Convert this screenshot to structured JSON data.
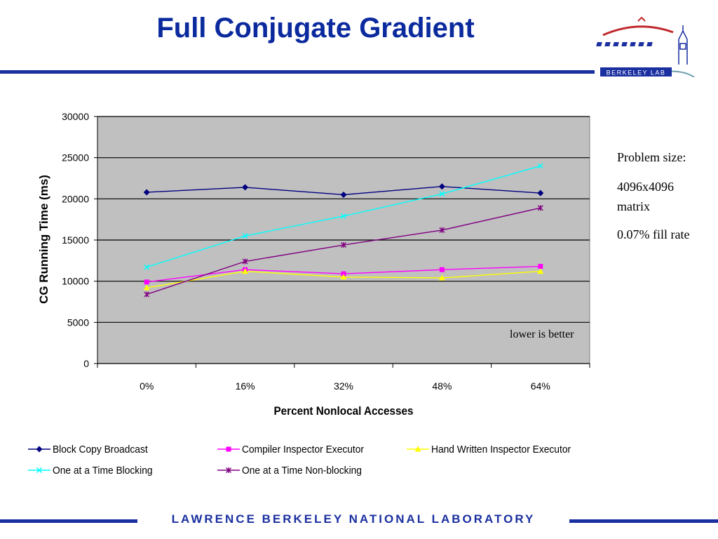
{
  "header": {
    "title": "Full Conjugate Gradient"
  },
  "logo": {
    "text": "Berkeley Lab",
    "icon": "berkeley-lab-logo"
  },
  "notes": {
    "problem_size_label": "Problem size:",
    "matrix_size": "4096x4096",
    "matrix_word": "matrix",
    "fill_rate": "0.07% fill rate"
  },
  "annotation": "lower is better",
  "footer": {
    "text": "Lawrence Berkeley National Laboratory"
  },
  "colors": {
    "title": "#0b2a9e",
    "rule": "#1a2fa0",
    "plot_bg": "#c0c0c0"
  },
  "chart_data": {
    "type": "line",
    "title": "",
    "xlabel": "Percent Nonlocal Accesses",
    "ylabel": "CG Running Time (ms)",
    "categories": [
      "0%",
      "16%",
      "32%",
      "48%",
      "64%"
    ],
    "ylim": [
      0,
      30000
    ],
    "yticks": [
      0,
      5000,
      10000,
      15000,
      20000,
      25000,
      30000
    ],
    "grid": true,
    "legend_position": "bottom",
    "series": [
      {
        "name": "Block Copy Broadcast",
        "values": [
          20800,
          21400,
          20500,
          21500,
          20700
        ],
        "color": "#000080",
        "marker": "diamond"
      },
      {
        "name": "Compiler Inspector Executor",
        "values": [
          9900,
          11400,
          10900,
          11400,
          11800
        ],
        "color": "#ff00ff",
        "marker": "square"
      },
      {
        "name": "Hand Written Inspector Executor",
        "values": [
          9200,
          11200,
          10500,
          10400,
          11200
        ],
        "color": "#ffff00",
        "marker": "triangle"
      },
      {
        "name": "One at a Time Blocking",
        "values": [
          11700,
          15500,
          17900,
          20600,
          24000
        ],
        "color": "#00ffff",
        "marker": "x"
      },
      {
        "name": "One at a Time Non-blocking",
        "values": [
          8400,
          12400,
          14400,
          16200,
          18900
        ],
        "color": "#800080",
        "marker": "star"
      }
    ]
  }
}
